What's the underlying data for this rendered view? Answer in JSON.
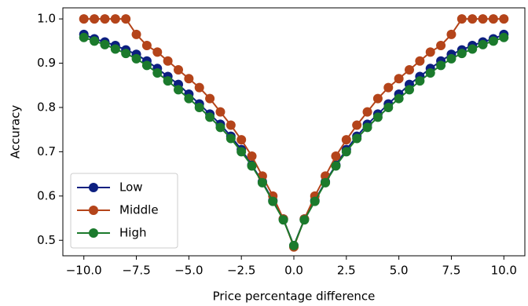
{
  "chart_data": {
    "type": "line",
    "xlabel": "Price percentage difference",
    "ylabel": "Accuracy",
    "x": [
      -10,
      -9.5,
      -9,
      -8.5,
      -8,
      -7.5,
      -7,
      -6.5,
      -6,
      -5.5,
      -5,
      -4.5,
      -4,
      -3.5,
      -3,
      -2.5,
      -2,
      -1.5,
      -1,
      -0.5,
      0,
      0.5,
      1,
      1.5,
      2,
      2.5,
      3,
      3.5,
      4,
      4.5,
      5,
      5.5,
      6,
      6.5,
      7,
      7.5,
      8,
      8.5,
      9,
      9.5,
      10
    ],
    "series": [
      {
        "name": "Low",
        "color": "#0c1f80",
        "values": [
          0.965,
          0.955,
          0.948,
          0.94,
          0.93,
          0.92,
          0.905,
          0.888,
          0.87,
          0.852,
          0.83,
          0.808,
          0.785,
          0.762,
          0.735,
          0.705,
          0.67,
          0.632,
          0.59,
          0.548,
          0.488,
          0.548,
          0.59,
          0.632,
          0.67,
          0.705,
          0.735,
          0.762,
          0.785,
          0.808,
          0.83,
          0.852,
          0.87,
          0.888,
          0.905,
          0.92,
          0.93,
          0.94,
          0.948,
          0.955,
          0.965
        ]
      },
      {
        "name": "Middle",
        "color": "#b4441a",
        "values": [
          1,
          1,
          1,
          1,
          1,
          0.965,
          0.94,
          0.925,
          0.905,
          0.885,
          0.865,
          0.845,
          0.82,
          0.79,
          0.76,
          0.727,
          0.69,
          0.645,
          0.6,
          0.548,
          0.485,
          0.548,
          0.6,
          0.645,
          0.69,
          0.727,
          0.76,
          0.79,
          0.82,
          0.845,
          0.865,
          0.885,
          0.905,
          0.925,
          0.94,
          0.965,
          1,
          1,
          1,
          1,
          1
        ]
      },
      {
        "name": "High",
        "color": "#1b7a2c",
        "values": [
          0.958,
          0.95,
          0.942,
          0.932,
          0.922,
          0.91,
          0.895,
          0.878,
          0.86,
          0.84,
          0.82,
          0.8,
          0.778,
          0.755,
          0.73,
          0.7,
          0.668,
          0.63,
          0.588,
          0.546,
          0.488,
          0.546,
          0.588,
          0.63,
          0.668,
          0.7,
          0.73,
          0.755,
          0.778,
          0.8,
          0.82,
          0.84,
          0.86,
          0.878,
          0.895,
          0.91,
          0.922,
          0.932,
          0.942,
          0.95,
          0.958
        ]
      }
    ],
    "xlim": [
      -11,
      11
    ],
    "xticks": [
      {
        "value": -10,
        "label": "−10.0"
      },
      {
        "value": -7.5,
        "label": "−7.5"
      },
      {
        "value": -5,
        "label": "−5.0"
      },
      {
        "value": -2.5,
        "label": "−2.5"
      },
      {
        "value": 0,
        "label": "0.0"
      },
      {
        "value": 2.5,
        "label": "2.5"
      },
      {
        "value": 5,
        "label": "5.0"
      },
      {
        "value": 7.5,
        "label": "7.5"
      },
      {
        "value": 10,
        "label": "10.0"
      }
    ],
    "ylim": [
      0.465,
      1.025
    ],
    "yticks": [
      0.5,
      0.6,
      0.7,
      0.8,
      0.9,
      {
        "value": 1,
        "label": "1.0"
      }
    ],
    "legend": "lower left"
  }
}
